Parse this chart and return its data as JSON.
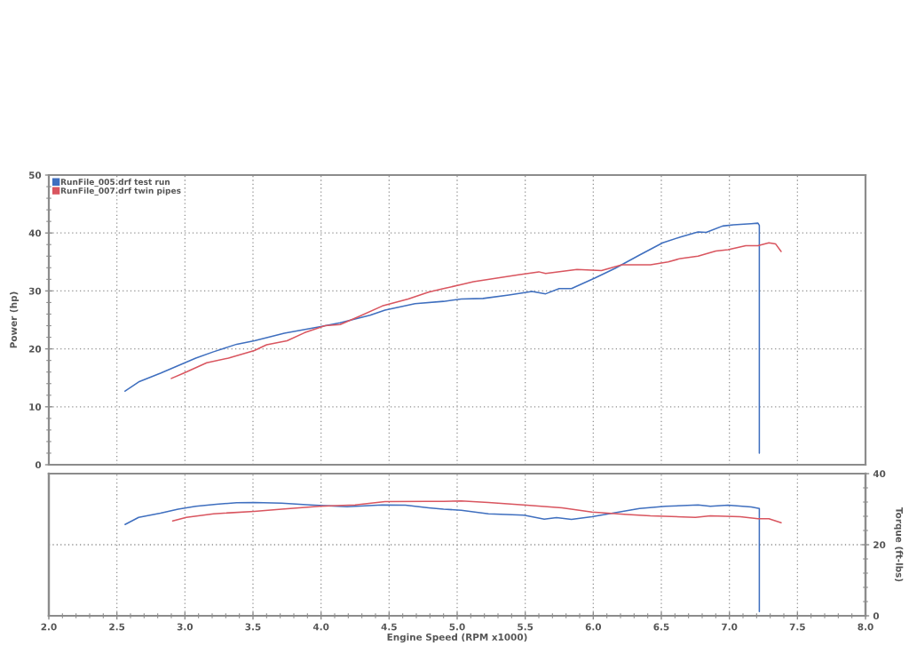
{
  "chart_data": [
    {
      "type": "line",
      "ylabel": "Power (hp)",
      "xlim": [
        2,
        8
      ],
      "xticks": [
        {
          "value": 2,
          "label": null
        },
        {
          "value": 2.5,
          "label": null
        },
        {
          "value": 3,
          "label": null
        },
        {
          "value": 3.5,
          "label": null
        },
        {
          "value": 4,
          "label": null
        },
        {
          "value": 4.5,
          "label": null
        },
        {
          "value": 5,
          "label": null
        },
        {
          "value": 5.5,
          "label": null
        },
        {
          "value": 6,
          "label": null
        },
        {
          "value": 6.5,
          "label": null
        },
        {
          "value": 7,
          "label": null
        },
        {
          "value": 7.5,
          "label": null
        },
        {
          "value": 8,
          "label": null
        }
      ],
      "ylim": [
        0,
        50
      ],
      "yticks": [
        0,
        {
          "value": 2,
          "label": null
        },
        {
          "value": 4,
          "label": null
        },
        {
          "value": 6,
          "label": null
        },
        {
          "value": 8,
          "label": null
        },
        10,
        {
          "value": 12,
          "label": null
        },
        {
          "value": 14,
          "label": null
        },
        {
          "value": 16,
          "label": null
        },
        {
          "value": 18,
          "label": null
        },
        20,
        {
          "value": 22,
          "label": null
        },
        {
          "value": 24,
          "label": null
        },
        {
          "value": 26,
          "label": null
        },
        {
          "value": 28,
          "label": null
        },
        30,
        {
          "value": 32,
          "label": null
        },
        {
          "value": 34,
          "label": null
        },
        {
          "value": 36,
          "label": null
        },
        {
          "value": 38,
          "label": null
        },
        40,
        {
          "value": 42,
          "label": null
        },
        {
          "value": 44,
          "label": null
        },
        {
          "value": 46,
          "label": null
        },
        {
          "value": 48,
          "label": null
        },
        50
      ],
      "tick_labels": "y",
      "grid": true,
      "legend": "top left",
      "line_style": "solid",
      "series": [
        {
          "name": "RunFile_005.drf test run",
          "color": "#3f6fbf",
          "x": [
            2.56,
            2.66,
            2.82,
            2.95,
            3.08,
            3.21,
            3.38,
            3.51,
            3.73,
            3.99,
            4.14,
            4.36,
            4.47,
            4.69,
            4.9,
            5.03,
            5.19,
            5.38,
            5.55,
            5.65,
            5.75,
            5.84,
            6.01,
            6.16,
            6.34,
            6.51,
            6.64,
            6.77,
            6.83,
            6.95,
            7.03,
            7.16,
            7.21,
            7.22,
            7.22
          ],
          "values": [
            12.7,
            14.3,
            15.8,
            17.1,
            18.4,
            19.5,
            20.8,
            21.4,
            22.7,
            23.8,
            24.5,
            25.8,
            26.7,
            27.8,
            28.2,
            28.6,
            28.7,
            29.3,
            29.9,
            29.5,
            30.4,
            30.4,
            32.2,
            33.9,
            36.2,
            38.3,
            39.3,
            40.2,
            40.1,
            41.2,
            41.4,
            41.6,
            41.7,
            41.3,
            2.0
          ]
        },
        {
          "name": "RunFile_007.drf twin pipes",
          "color": "#d9555f",
          "x": [
            2.9,
            2.99,
            3.16,
            3.32,
            3.51,
            3.6,
            3.75,
            3.88,
            4.03,
            4.14,
            4.27,
            4.45,
            4.64,
            4.79,
            4.9,
            5.03,
            5.12,
            5.45,
            5.6,
            5.65,
            5.88,
            6.06,
            6.21,
            6.42,
            6.55,
            6.64,
            6.77,
            6.9,
            6.99,
            7.12,
            7.21,
            7.29,
            7.34,
            7.38
          ],
          "values": [
            14.9,
            15.8,
            17.6,
            18.4,
            19.7,
            20.7,
            21.4,
            22.8,
            24.0,
            24.2,
            25.5,
            27.4,
            28.6,
            29.8,
            30.4,
            31.1,
            31.6,
            32.8,
            33.3,
            33.0,
            33.7,
            33.5,
            34.5,
            34.5,
            35.0,
            35.6,
            36.0,
            36.9,
            37.1,
            37.8,
            37.8,
            38.3,
            38.1,
            36.8
          ]
        }
      ]
    },
    {
      "type": "line",
      "xlabel": "Engine Speed (RPM x1000)",
      "y2label": "Torque (ft-lbs)",
      "xlim": [
        2,
        8
      ],
      "xticks": [
        {
          "value": 2,
          "label": "2.0"
        },
        {
          "value": 2.1,
          "label": null
        },
        {
          "value": 2.2,
          "label": null
        },
        {
          "value": 2.3,
          "label": null
        },
        {
          "value": 2.4,
          "label": null
        },
        2.5,
        {
          "value": 2.6,
          "label": null
        },
        {
          "value": 2.7,
          "label": null
        },
        {
          "value": 2.8,
          "label": null
        },
        {
          "value": 2.9,
          "label": null
        },
        {
          "value": 3,
          "label": "3.0"
        },
        {
          "value": 3.1,
          "label": null
        },
        {
          "value": 3.2,
          "label": null
        },
        {
          "value": 3.3,
          "label": null
        },
        {
          "value": 3.4,
          "label": null
        },
        3.5,
        {
          "value": 3.6,
          "label": null
        },
        {
          "value": 3.7,
          "label": null
        },
        {
          "value": 3.8,
          "label": null
        },
        {
          "value": 3.9,
          "label": null
        },
        {
          "value": 4,
          "label": "4.0"
        },
        {
          "value": 4.1,
          "label": null
        },
        {
          "value": 4.2,
          "label": null
        },
        {
          "value": 4.3,
          "label": null
        },
        {
          "value": 4.4,
          "label": null
        },
        4.5,
        {
          "value": 4.6,
          "label": null
        },
        {
          "value": 4.7,
          "label": null
        },
        {
          "value": 4.8,
          "label": null
        },
        {
          "value": 4.9,
          "label": null
        },
        {
          "value": 5,
          "label": "5.0"
        },
        {
          "value": 5.1,
          "label": null
        },
        {
          "value": 5.2,
          "label": null
        },
        {
          "value": 5.3,
          "label": null
        },
        {
          "value": 5.4,
          "label": null
        },
        5.5,
        {
          "value": 5.6,
          "label": null
        },
        {
          "value": 5.7,
          "label": null
        },
        {
          "value": 5.8,
          "label": null
        },
        {
          "value": 5.9,
          "label": null
        },
        {
          "value": 6,
          "label": "6.0"
        },
        {
          "value": 6.1,
          "label": null
        },
        {
          "value": 6.2,
          "label": null
        },
        {
          "value": 6.3,
          "label": null
        },
        {
          "value": 6.4,
          "label": null
        },
        6.5,
        {
          "value": 6.6,
          "label": null
        },
        {
          "value": 6.7,
          "label": null
        },
        {
          "value": 6.8,
          "label": null
        },
        {
          "value": 6.9,
          "label": null
        },
        {
          "value": 7,
          "label": "7.0"
        },
        {
          "value": 7.1,
          "label": null
        },
        {
          "value": 7.2,
          "label": null
        },
        {
          "value": 7.3,
          "label": null
        },
        {
          "value": 7.4,
          "label": null
        },
        7.5,
        {
          "value": 7.6,
          "label": null
        },
        {
          "value": 7.7,
          "label": null
        },
        {
          "value": 7.8,
          "label": null
        },
        {
          "value": 7.9,
          "label": null
        },
        {
          "value": 8,
          "label": "8.0"
        }
      ],
      "y2lim": [
        0,
        40
      ],
      "y2ticks": [
        0,
        {
          "value": 4,
          "label": null
        },
        {
          "value": 8,
          "label": null
        },
        {
          "value": 12,
          "label": null
        },
        {
          "value": 16,
          "label": null
        },
        20,
        {
          "value": 24,
          "label": null
        },
        {
          "value": 28,
          "label": null
        },
        {
          "value": 32,
          "label": null
        },
        {
          "value": 36,
          "label": null
        },
        40
      ],
      "grid": true,
      "line_style": "solid",
      "series": [
        {
          "color": "#3f6fbf",
          "axis": "y2",
          "x": [
            2.56,
            2.66,
            2.82,
            2.95,
            3.08,
            3.23,
            3.38,
            3.51,
            3.71,
            3.92,
            4.19,
            4.45,
            4.62,
            4.79,
            4.9,
            5.03,
            5.23,
            5.49,
            5.64,
            5.73,
            5.84,
            5.99,
            6.16,
            6.34,
            6.53,
            6.77,
            6.86,
            6.99,
            7.16,
            7.22,
            7.22
          ],
          "values": [
            25.7,
            27.7,
            28.9,
            30.0,
            30.8,
            31.4,
            31.8,
            31.9,
            31.7,
            31.2,
            30.7,
            31.2,
            31.1,
            30.4,
            30.0,
            29.7,
            28.7,
            28.3,
            27.2,
            27.6,
            27.1,
            27.9,
            29.0,
            30.2,
            30.8,
            31.2,
            30.8,
            31.1,
            30.6,
            30.2,
            1.2
          ]
        },
        {
          "color": "#d9555f",
          "axis": "y2",
          "x": [
            2.91,
            3.01,
            3.21,
            3.51,
            3.71,
            3.99,
            4.25,
            4.47,
            4.77,
            4.9,
            5.03,
            5.23,
            5.51,
            5.77,
            5.99,
            6.25,
            6.42,
            6.75,
            6.86,
            7.08,
            7.21,
            7.29,
            7.38
          ],
          "values": [
            26.7,
            27.7,
            28.7,
            29.4,
            30.0,
            30.8,
            31.2,
            32.1,
            32.2,
            32.2,
            32.3,
            31.9,
            31.1,
            30.4,
            29.2,
            28.5,
            28.1,
            27.7,
            28.1,
            27.9,
            27.3,
            27.3,
            26.2
          ]
        }
      ]
    }
  ]
}
